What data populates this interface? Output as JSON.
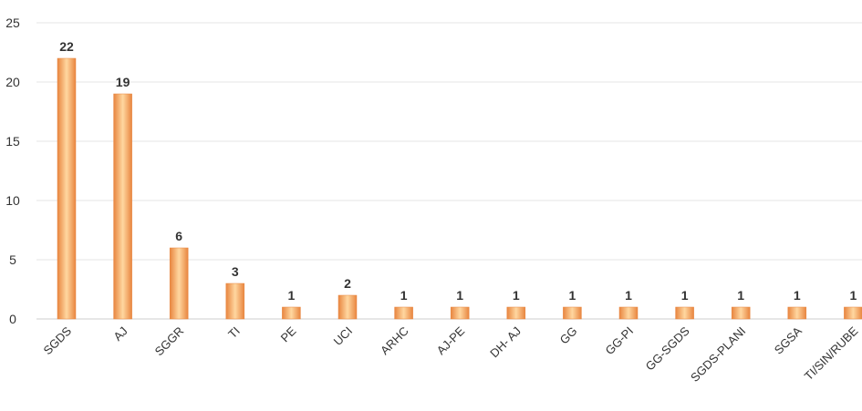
{
  "chart_data": {
    "type": "bar",
    "categories": [
      "SGDS",
      "AJ",
      "SGGR",
      "TI",
      "PE",
      "UCI",
      "ARHC",
      "AJ-PE",
      "DH- AJ",
      "GG",
      "GG-PI",
      "GG-SGDS",
      "SGDS-PLANI",
      "SGSA",
      "TI/SIN/RUBE"
    ],
    "values": [
      22,
      19,
      6,
      3,
      1,
      2,
      1,
      1,
      1,
      1,
      1,
      1,
      1,
      1,
      1
    ],
    "title": "",
    "xlabel": "",
    "ylabel": "",
    "ylim": [
      0,
      25
    ],
    "yticks": [
      0,
      5,
      10,
      15,
      20,
      25
    ],
    "grid": true,
    "legend": "none",
    "colors": {
      "bar_light": "#ffd7a0",
      "bar_mid": "#f7a25e",
      "bar_dark": "#e8853f",
      "grid": "#e6e6e6",
      "axis": "#cccccc"
    }
  }
}
